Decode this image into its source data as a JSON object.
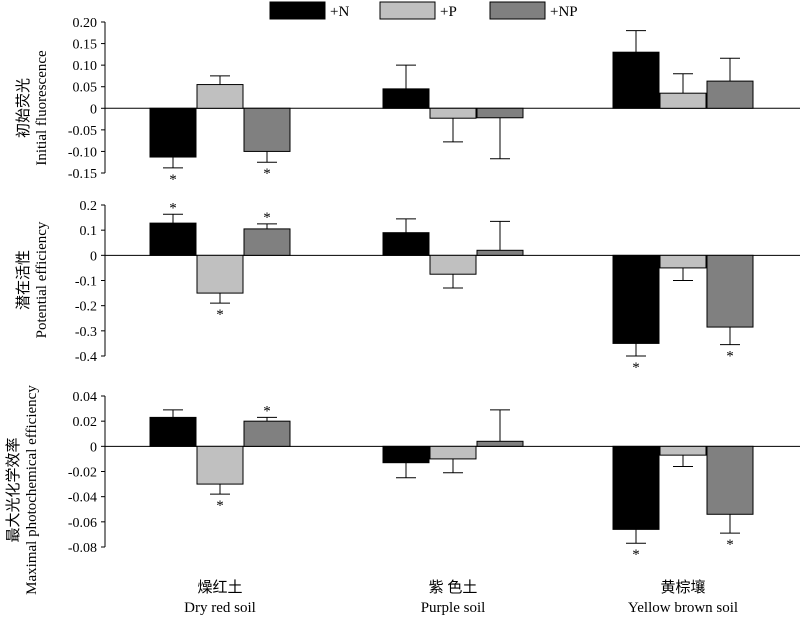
{
  "legend": {
    "items": [
      {
        "label": "+N",
        "color": "#000000"
      },
      {
        "label": "+P",
        "color": "#c0c0c0"
      },
      {
        "label": "+NP",
        "color": "#808080"
      }
    ]
  },
  "chart_data": [
    {
      "type": "bar",
      "ylabel_cn": "初始荧光",
      "ylabel": "Initial fluorescence",
      "ylim": [
        -0.15,
        0.2
      ],
      "yticks": [
        -0.15,
        -0.1,
        -0.05,
        0,
        0.05,
        0.1,
        0.15,
        0.2
      ],
      "ytick_labels": [
        "-0.15",
        "-0.10",
        "-0.05",
        "0",
        "0.05",
        "0.10",
        "0.15",
        "0.20"
      ],
      "categories": [
        "Dry red soil",
        "Purple soil",
        "Yellow brown soil"
      ],
      "series": [
        {
          "name": "+N",
          "values": [
            -0.113,
            0.045,
            0.13
          ],
          "errors": [
            0.025,
            0.055,
            0.05
          ],
          "significant": [
            true,
            false,
            false
          ]
        },
        {
          "name": "+P",
          "values": [
            0.055,
            -0.023,
            0.035
          ],
          "errors": [
            0.02,
            0.055,
            0.045
          ],
          "significant": [
            false,
            false,
            false
          ]
        },
        {
          "name": "+NP",
          "values": [
            -0.1,
            -0.022,
            0.063
          ],
          "errors": [
            0.025,
            0.095,
            0.053
          ],
          "significant": [
            true,
            false,
            false
          ]
        }
      ]
    },
    {
      "type": "bar",
      "ylabel_cn": "潜在活性",
      "ylabel": "Potential efficiency",
      "ylim": [
        -0.4,
        0.2
      ],
      "yticks": [
        -0.4,
        -0.3,
        -0.2,
        -0.1,
        0,
        0.1,
        0.2
      ],
      "ytick_labels": [
        "-0.4",
        "-0.3",
        "-0.2",
        "-0.1",
        "0",
        "0.1",
        "0.2"
      ],
      "categories": [
        "Dry red soil",
        "Purple soil",
        "Yellow brown soil"
      ],
      "series": [
        {
          "name": "+N",
          "values": [
            0.128,
            0.09,
            -0.35
          ],
          "errors": [
            0.035,
            0.055,
            0.05
          ],
          "significant": [
            true,
            false,
            true
          ]
        },
        {
          "name": "+P",
          "values": [
            -0.15,
            -0.075,
            -0.05
          ],
          "errors": [
            0.04,
            0.055,
            0.05
          ],
          "significant": [
            true,
            false,
            false
          ]
        },
        {
          "name": "+NP",
          "values": [
            0.105,
            0.02,
            -0.285
          ],
          "errors": [
            0.02,
            0.115,
            0.07
          ],
          "significant": [
            true,
            false,
            true
          ]
        }
      ]
    },
    {
      "type": "bar",
      "ylabel_cn": "最大光化学效率",
      "ylabel": "Maximal photochemical efficiency",
      "ylim": [
        -0.08,
        0.04
      ],
      "yticks": [
        -0.08,
        -0.06,
        -0.04,
        -0.02,
        0,
        0.02,
        0.04
      ],
      "ytick_labels": [
        "-0.08",
        "-0.06",
        "-0.04",
        "-0.02",
        "0",
        "0.02",
        "0.04"
      ],
      "categories": [
        "Dry red soil",
        "Purple soil",
        "Yellow brown soil"
      ],
      "series": [
        {
          "name": "+N",
          "values": [
            0.023,
            -0.013,
            -0.066
          ],
          "errors": [
            0.006,
            0.012,
            0.011
          ],
          "significant": [
            false,
            false,
            true
          ]
        },
        {
          "name": "+P",
          "values": [
            -0.03,
            -0.01,
            -0.007
          ],
          "errors": [
            0.008,
            0.011,
            0.009
          ],
          "significant": [
            true,
            false,
            false
          ]
        },
        {
          "name": "+NP",
          "values": [
            0.02,
            0.004,
            -0.054
          ],
          "errors": [
            0.003,
            0.025,
            0.015
          ],
          "significant": [
            true,
            false,
            true
          ]
        }
      ]
    }
  ],
  "x_categories": [
    {
      "cn": "燥红土",
      "en": "Dry red soil"
    },
    {
      "cn": "紫 色土",
      "en": "Purple soil"
    },
    {
      "cn": "黄棕壤",
      "en": "Yellow brown soil"
    }
  ],
  "significance_mark": "*"
}
